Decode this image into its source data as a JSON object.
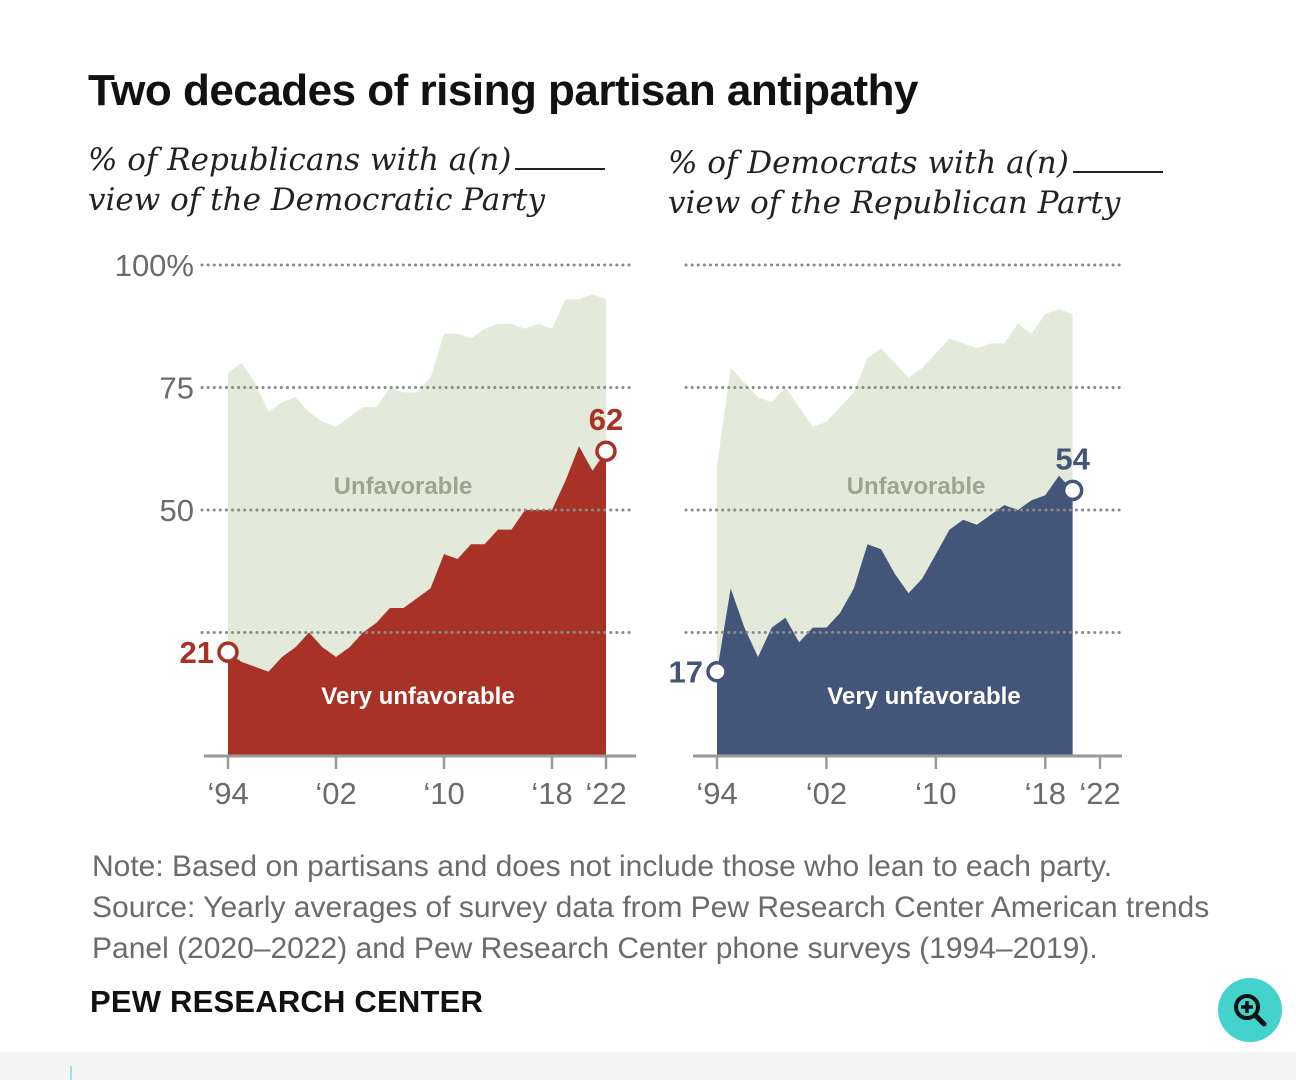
{
  "title": "Two decades of rising partisan antipathy",
  "subtitles": {
    "left": {
      "line1": "% of Republicans with a(n)",
      "line2": "view of the Democratic Party"
    },
    "right": {
      "line1": "% of Democrats with a(n)",
      "line2": "view of the Republican Party"
    }
  },
  "note": "Note: Based on partisans and does not include those who lean to each party.",
  "source": "Source: Yearly averages of survey data from Pew Research Center American trends Panel (2020–2022) and Pew Research Center phone surveys (1994–2019).",
  "org": "PEW RESEARCH CENTER",
  "colors": {
    "unfavorable": "#e3ead9",
    "rep_very": "#a83225",
    "dem_very": "#44557a",
    "grid": "#8a8a8a",
    "axis": "#9a9a9a",
    "tick_text": "#6b6b6b",
    "area_label": "#9ea58f",
    "zoom": "#43d3cc"
  },
  "zoom_icon": "zoom-in-icon",
  "chart_data": [
    {
      "type": "area",
      "title": "% of Republicans with a(n) _____ view of the Democratic Party",
      "ylim": [
        0,
        100
      ],
      "yticks": [
        {
          "value": 100,
          "label": "100%"
        },
        {
          "value": 75,
          "label": "75"
        },
        {
          "value": 50,
          "label": "50"
        },
        {
          "value": 25,
          "label": ""
        }
      ],
      "xticks": [
        {
          "year": 1994,
          "label": "‘94"
        },
        {
          "year": 2002,
          "label": "‘02"
        },
        {
          "year": 2010,
          "label": "‘10"
        },
        {
          "year": 2018,
          "label": "‘18"
        },
        {
          "year": 2022,
          "label": "‘22"
        }
      ],
      "area_labels": {
        "unfavorable": "Unfavorable",
        "very": "Very unfavorable"
      },
      "start_label": "21",
      "end_label": "62",
      "series": [
        {
          "name": "Unfavorable",
          "points": [
            [
              1994,
              78
            ],
            [
              1995,
              80
            ],
            [
              1996,
              76
            ],
            [
              1997,
              70
            ],
            [
              1998,
              72
            ],
            [
              1999,
              73
            ],
            [
              2000,
              70
            ],
            [
              2001,
              68
            ],
            [
              2002,
              67
            ],
            [
              2003,
              69
            ],
            [
              2004,
              71
            ],
            [
              2005,
              71
            ],
            [
              2006,
              75
            ],
            [
              2007,
              74
            ],
            [
              2008,
              74
            ],
            [
              2009,
              77
            ],
            [
              2010,
              86
            ],
            [
              2011,
              86
            ],
            [
              2012,
              85
            ],
            [
              2013,
              87
            ],
            [
              2014,
              88
            ],
            [
              2015,
              88
            ],
            [
              2016,
              87
            ],
            [
              2017,
              88
            ],
            [
              2018,
              87
            ],
            [
              2019,
              93
            ],
            [
              2020,
              93
            ],
            [
              2021,
              94
            ]
          ]
        },
        {
          "name": "Very unfavorable",
          "points": [
            [
              1994,
              21
            ],
            [
              1995,
              19
            ],
            [
              1996,
              18
            ],
            [
              1997,
              17
            ],
            [
              1998,
              20
            ],
            [
              1999,
              22
            ],
            [
              2000,
              25
            ],
            [
              2001,
              22
            ],
            [
              2002,
              20
            ],
            [
              2003,
              22
            ],
            [
              2004,
              25
            ],
            [
              2005,
              27
            ],
            [
              2006,
              30
            ],
            [
              2007,
              30
            ],
            [
              2008,
              32
            ],
            [
              2009,
              34
            ],
            [
              2010,
              41
            ],
            [
              2011,
              40
            ],
            [
              2012,
              43
            ],
            [
              2013,
              43
            ],
            [
              2014,
              46
            ],
            [
              2015,
              46
            ],
            [
              2016,
              50
            ],
            [
              2017,
              50
            ],
            [
              2018,
              50
            ],
            [
              2019,
              56
            ],
            [
              2020,
              63
            ],
            [
              2021,
              58
            ],
            [
              2022,
              62
            ]
          ]
        }
      ]
    },
    {
      "type": "area",
      "title": "% of Democrats with a(n) _____ view of the Republican Party",
      "ylim": [
        0,
        100
      ],
      "yticks": [
        {
          "value": 100,
          "label": ""
        },
        {
          "value": 75,
          "label": ""
        },
        {
          "value": 50,
          "label": ""
        },
        {
          "value": 25,
          "label": ""
        }
      ],
      "xticks": [
        {
          "year": 1994,
          "label": "‘94"
        },
        {
          "year": 2002,
          "label": "‘02"
        },
        {
          "year": 2010,
          "label": "‘10"
        },
        {
          "year": 2018,
          "label": "‘18"
        },
        {
          "year": 2022,
          "label": "‘22"
        }
      ],
      "area_labels": {
        "unfavorable": "Unfavorable",
        "very": "Very unfavorable"
      },
      "start_label": "17",
      "end_label": "54",
      "series": [
        {
          "name": "Unfavorable",
          "points": [
            [
              1994,
              59
            ],
            [
              1995,
              79
            ],
            [
              1996,
              76
            ],
            [
              1997,
              73
            ],
            [
              1998,
              72
            ],
            [
              1999,
              75
            ],
            [
              2000,
              71
            ],
            [
              2001,
              67
            ],
            [
              2002,
              68
            ],
            [
              2003,
              71
            ],
            [
              2004,
              74
            ],
            [
              2005,
              81
            ],
            [
              2006,
              83
            ],
            [
              2007,
              80
            ],
            [
              2008,
              77
            ],
            [
              2009,
              79
            ],
            [
              2010,
              82
            ],
            [
              2011,
              85
            ],
            [
              2012,
              84
            ],
            [
              2013,
              83
            ],
            [
              2014,
              84
            ],
            [
              2015,
              84
            ],
            [
              2016,
              88
            ],
            [
              2017,
              86
            ],
            [
              2018,
              90
            ],
            [
              2019,
              91
            ],
            [
              2020,
              90
            ]
          ]
        },
        {
          "name": "Very unfavorable",
          "points": [
            [
              1994,
              17
            ],
            [
              1995,
              34
            ],
            [
              1996,
              26
            ],
            [
              1997,
              20
            ],
            [
              1998,
              26
            ],
            [
              1999,
              28
            ],
            [
              2000,
              23
            ],
            [
              2001,
              26
            ],
            [
              2002,
              26
            ],
            [
              2003,
              29
            ],
            [
              2004,
              34
            ],
            [
              2005,
              43
            ],
            [
              2006,
              42
            ],
            [
              2007,
              37
            ],
            [
              2008,
              33
            ],
            [
              2009,
              36
            ],
            [
              2010,
              41
            ],
            [
              2011,
              46
            ],
            [
              2012,
              48
            ],
            [
              2013,
              47
            ],
            [
              2014,
              49
            ],
            [
              2015,
              51
            ],
            [
              2016,
              50
            ],
            [
              2017,
              52
            ],
            [
              2018,
              53
            ],
            [
              2019,
              57
            ],
            [
              2020,
              54
            ]
          ]
        }
      ]
    }
  ]
}
